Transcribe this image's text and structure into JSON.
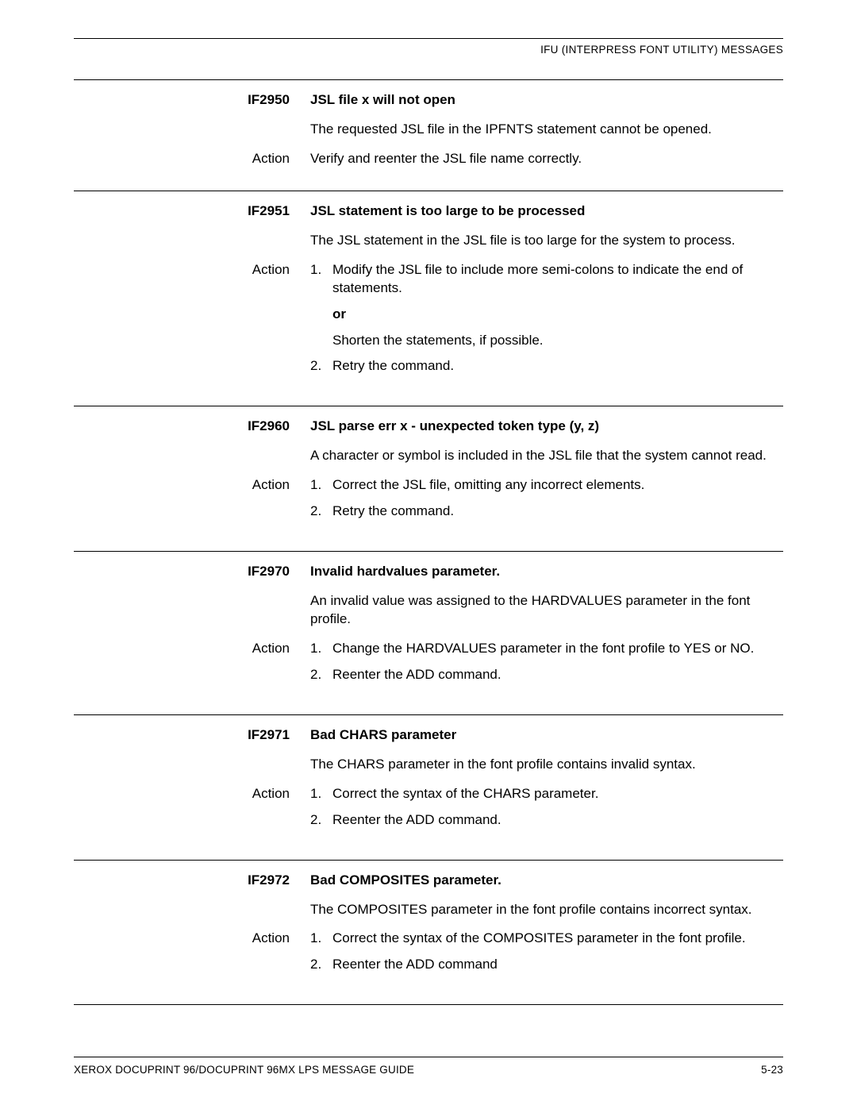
{
  "header": "IFU (INTERPRESS FONT UTILITY) MESSAGES",
  "footer_left": "XEROX DOCUPRINT 96/DOCUPRINT 96MX LPS MESSAGE GUIDE",
  "footer_right": "5-23",
  "action_label": "Action",
  "or_label": "or",
  "sections": [
    {
      "code": "IF2950",
      "title": "JSL file x will not open",
      "desc": "The requested JSL file in the IPFNTS statement cannot be opened.",
      "action_plain": "Verify and reenter the JSL file name correctly."
    },
    {
      "code": "IF2951",
      "title": "JSL statement is too large to be processed",
      "desc": "The JSL statement in the JSL file is too large for the system to process.",
      "steps": [
        {
          "text": "Modify the JSL file to include more semi-colons to indicate the end of statements.",
          "or_after": true,
          "after_text": "Shorten the statements, if possible."
        },
        {
          "text": "Retry the command."
        }
      ]
    },
    {
      "code": "IF2960",
      "title": "JSL parse err x - unexpected token type (y, z)",
      "desc": "A character or symbol is included in the JSL file that the system cannot read.",
      "steps": [
        {
          "text": "Correct the JSL file, omitting any incorrect elements."
        },
        {
          "text": "Retry the command."
        }
      ]
    },
    {
      "code": "IF2970",
      "title": "Invalid hardvalues parameter.",
      "desc": "An invalid value was assigned to the HARDVALUES parameter in the font profile.",
      "steps": [
        {
          "text": "Change the HARDVALUES parameter in the font profile to YES or NO."
        },
        {
          "text": "Reenter the ADD command."
        }
      ]
    },
    {
      "code": "IF2971",
      "title": "Bad CHARS parameter",
      "desc": "The CHARS parameter in the font profile contains invalid syntax.",
      "steps": [
        {
          "text": "Correct the syntax of the CHARS parameter."
        },
        {
          "text": "Reenter the ADD command."
        }
      ]
    },
    {
      "code": "IF2972",
      "title": "Bad COMPOSITES parameter.",
      "desc": "The COMPOSITES parameter in the font profile contains incorrect syntax.",
      "steps": [
        {
          "text": "Correct the syntax of the COMPOSITES parameter in the font profile."
        },
        {
          "text": "Reenter the ADD command"
        }
      ]
    }
  ]
}
